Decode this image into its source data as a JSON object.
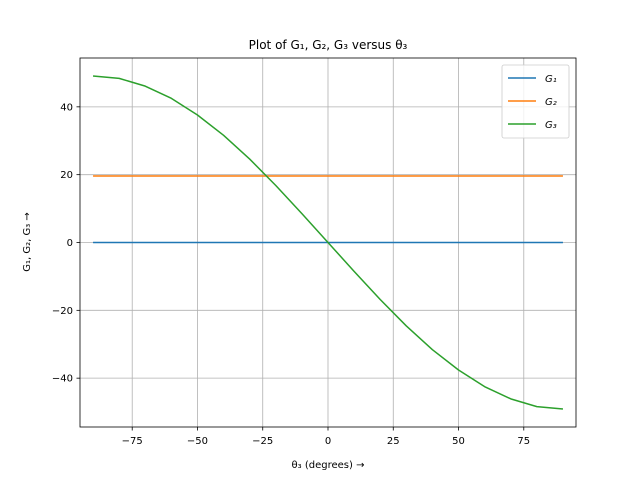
{
  "chart_data": {
    "type": "line",
    "title": "Plot of G₁, G₂, G₃ versus θ₃",
    "xlabel": "θ₃ (degrees) →",
    "ylabel": "G₁, G₂, G₃ →",
    "xlim": [
      -95,
      95
    ],
    "ylim": [
      -54.4,
      54.4
    ],
    "xticks": [
      -75,
      -50,
      -25,
      0,
      25,
      50,
      75
    ],
    "xtick_labels": [
      "−75",
      "−50",
      "−25",
      "0",
      "25",
      "50",
      "75"
    ],
    "yticks": [
      -40,
      -20,
      0,
      20,
      40
    ],
    "ytick_labels": [
      "−40",
      "−20",
      "0",
      "20",
      "40"
    ],
    "grid": true,
    "legend_position": "top-right",
    "x": [
      -90,
      -80,
      -70,
      -60,
      -50,
      -40,
      -30,
      -20,
      -10,
      0,
      10,
      20,
      30,
      40,
      50,
      60,
      70,
      80,
      90
    ],
    "series": [
      {
        "name": "G₁",
        "color": "#1f77b4",
        "values": [
          0,
          0,
          0,
          0,
          0,
          0,
          0,
          0,
          0,
          0,
          0,
          0,
          0,
          0,
          0,
          0,
          0,
          0,
          0
        ]
      },
      {
        "name": "G₂",
        "color": "#ff7f0e",
        "values": [
          19.6,
          19.6,
          19.6,
          19.6,
          19.6,
          19.6,
          19.6,
          19.6,
          19.6,
          19.6,
          19.6,
          19.6,
          19.6,
          19.6,
          19.6,
          19.6,
          19.6,
          19.6,
          19.6
        ]
      },
      {
        "name": "G₃",
        "color": "#2ca02c",
        "values": [
          49.1,
          48.4,
          46.1,
          42.5,
          37.6,
          31.6,
          24.6,
          16.8,
          8.5,
          0,
          -8.5,
          -16.8,
          -24.6,
          -31.6,
          -37.6,
          -42.5,
          -46.1,
          -48.4,
          -49.1
        ]
      }
    ]
  }
}
